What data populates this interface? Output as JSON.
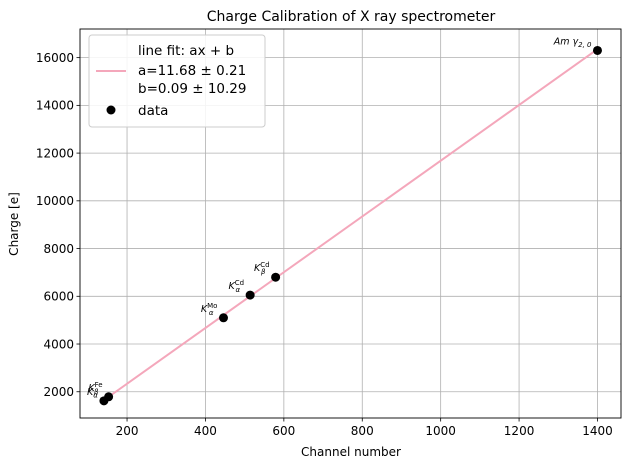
{
  "chart_data": {
    "type": "scatter",
    "title": "Charge Calibration of X ray spectrometer",
    "xlabel": "Channel number",
    "ylabel": "Charge [e]",
    "xlim": [
      80,
      1460
    ],
    "ylim": [
      900,
      17200
    ],
    "xticks": [
      200,
      400,
      600,
      800,
      1000,
      1200,
      1400
    ],
    "yticks": [
      2000,
      4000,
      6000,
      8000,
      10000,
      12000,
      14000,
      16000
    ],
    "grid": true,
    "legend_position": "top-left",
    "fit": {
      "label_line1": "line fit: ax + b",
      "label_line2": "a=11.68 ± 0.21",
      "label_line3": "b=0.09 ± 10.29",
      "a": 11.68,
      "b": 0.09,
      "x_range": [
        140,
        1400
      ],
      "color": "#f4a7bb"
    },
    "series": [
      {
        "name": "data",
        "color": "#000000",
        "points": [
          {
            "x": 141,
            "y": 1620,
            "label": "K",
            "sup": "",
            "sub": "α"
          },
          {
            "x": 153,
            "y": 1790,
            "label": "K",
            "sup": "Fe",
            "sub": "β"
          },
          {
            "x": 446,
            "y": 5100,
            "label": "K",
            "sup": "Mo",
            "sub": "α"
          },
          {
            "x": 514,
            "y": 6050,
            "label": "K",
            "sup": "Cd",
            "sub": "α"
          },
          {
            "x": 579,
            "y": 6800,
            "label": "K",
            "sup": "Cd",
            "sub": "β"
          },
          {
            "x": 1400,
            "y": 16300,
            "label": "Am γ",
            "sup": "",
            "sub": "2, 0"
          }
        ]
      }
    ]
  }
}
